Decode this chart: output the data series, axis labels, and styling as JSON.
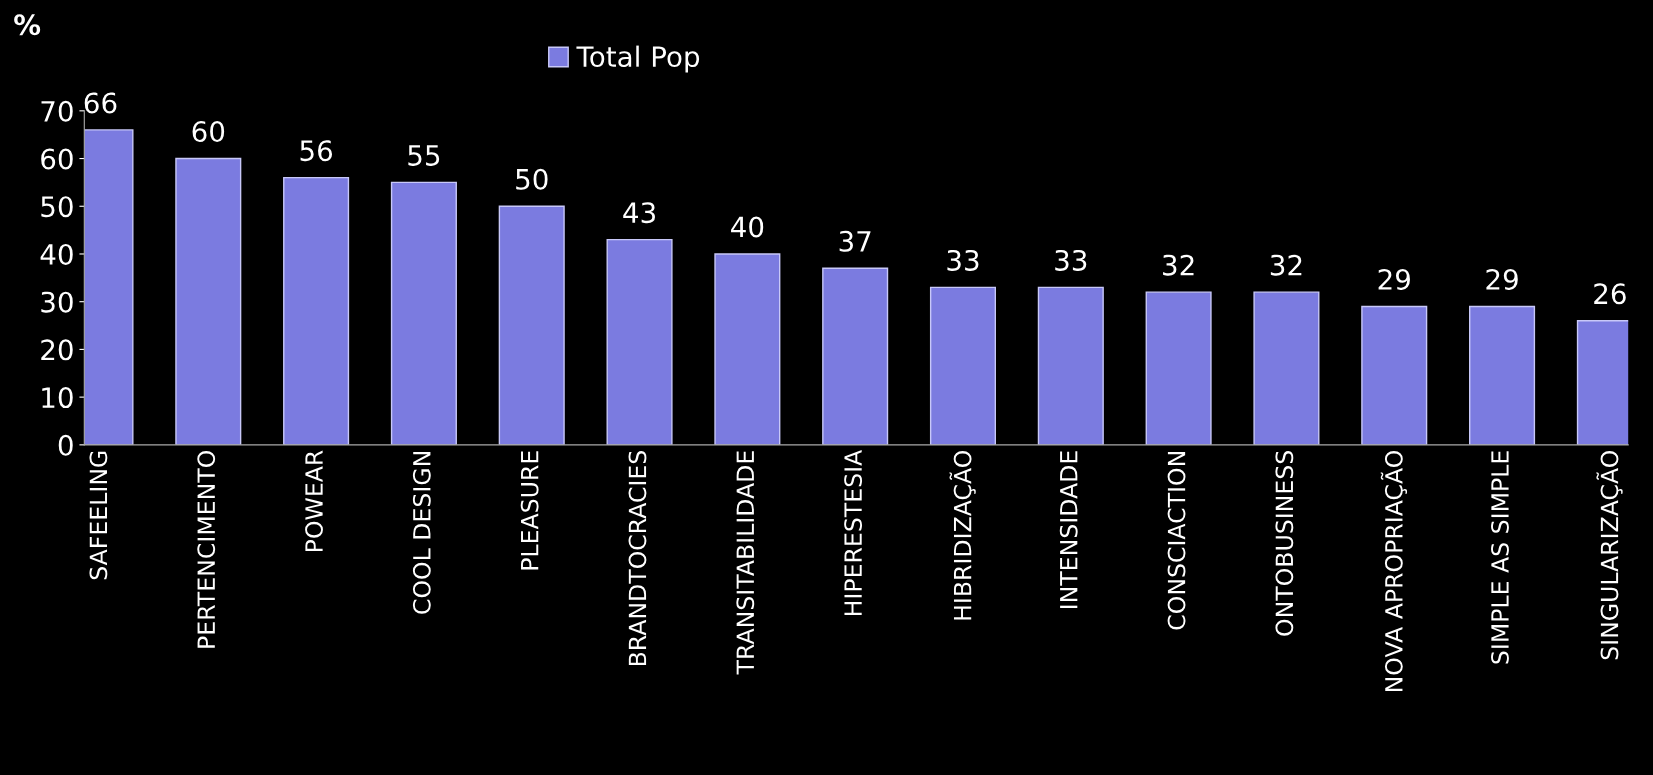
{
  "chart_data": {
    "type": "bar",
    "ylabel": "%",
    "categories": [
      "SAFEELING",
      "PERTENCIMENTO",
      "POWEAR",
      "COOL DESIGN",
      "PLEASURE",
      "BRANDTOCRACIES",
      "TRANSITABILIDADE",
      "HIPERESTESIA",
      "HIBRIDIZAÇÃO",
      "INTENSIDADE",
      "CONSCIACTION",
      "ONTOBUSINESS",
      "NOVA APROPRIAÇÃO",
      "SIMPLE AS SIMPLE",
      "SINGULARIZAÇÃO"
    ],
    "series": [
      {
        "name": "Total Pop",
        "color": "#7b7be0",
        "values": [
          66,
          60,
          56,
          55,
          50,
          43,
          40,
          37,
          33,
          33,
          32,
          32,
          29,
          29,
          26
        ]
      }
    ],
    "ylim": [
      0,
      70
    ],
    "yticks": [
      0,
      10,
      20,
      30,
      40,
      50,
      60,
      70
    ],
    "data_labels": true,
    "legend": "top",
    "grid": false
  }
}
